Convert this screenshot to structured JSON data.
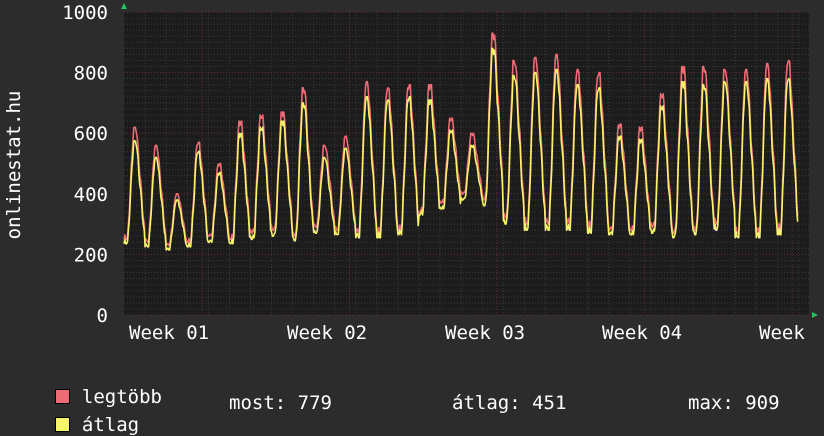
{
  "chart_data": {
    "type": "line",
    "ylabel": "onlinestat.hu",
    "ylim": [
      0,
      1000
    ],
    "y_ticks": [
      "0",
      "200",
      "400",
      "600",
      "800",
      "1000"
    ],
    "x_ticks": [
      "Week 01",
      "Week 02",
      "Week 03",
      "Week 04",
      "Week"
    ],
    "x_range_days": 32.5,
    "grid": true,
    "background_color": "#1c1c1c",
    "series": [
      {
        "name": "legtöbb",
        "color": "#ec6b74",
        "daily_peaks": [
          620,
          560,
          400,
          570,
          500,
          640,
          660,
          670,
          750,
          560,
          590,
          770,
          750,
          760,
          760,
          650,
          600,
          930,
          840,
          850,
          860,
          810,
          800,
          630,
          620,
          730,
          820,
          820,
          810,
          810,
          830,
          840
        ],
        "daily_troughs": [
          250,
          240,
          230,
          240,
          260,
          250,
          270,
          280,
          260,
          290,
          280,
          270,
          270,
          280,
          340,
          370,
          400,
          380,
          320,
          300,
          300,
          300,
          290,
          280,
          280,
          290,
          270,
          280,
          300,
          270,
          270,
          280
        ]
      },
      {
        "name": "átlag",
        "color": "#f6f46c",
        "daily_peaks": [
          575,
          520,
          380,
          540,
          470,
          600,
          620,
          640,
          700,
          520,
          550,
          720,
          710,
          720,
          710,
          610,
          560,
          880,
          790,
          800,
          810,
          760,
          750,
          590,
          580,
          690,
          770,
          760,
          770,
          770,
          780,
          780
        ],
        "daily_troughs": [
          235,
          225,
          215,
          225,
          240,
          235,
          250,
          260,
          245,
          270,
          265,
          255,
          255,
          265,
          330,
          350,
          380,
          360,
          300,
          280,
          280,
          280,
          270,
          265,
          265,
          270,
          255,
          265,
          280,
          255,
          255,
          265
        ]
      }
    ]
  },
  "legend": {
    "max_label": "legtöbb",
    "avg_label": "átlag",
    "max_color": "#ec6b74",
    "avg_color": "#f6f46c"
  },
  "stats": {
    "current": "most: 779",
    "average": "átlag: 451",
    "maximum": "max: 909"
  }
}
